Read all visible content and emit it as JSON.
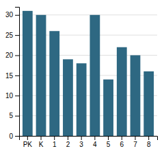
{
  "chart_data": {
    "type": "bar",
    "categories": [
      "PK",
      "K",
      "1",
      "2",
      "3",
      "4",
      "5",
      "6",
      "7",
      "8"
    ],
    "values": [
      31,
      30,
      26,
      19,
      18,
      30,
      14,
      22,
      20,
      16
    ],
    "color": "#2e6882",
    "ylim": [
      0,
      32
    ],
    "yticks": [
      0,
      5,
      10,
      15,
      20,
      25,
      30
    ],
    "grid": true
  }
}
